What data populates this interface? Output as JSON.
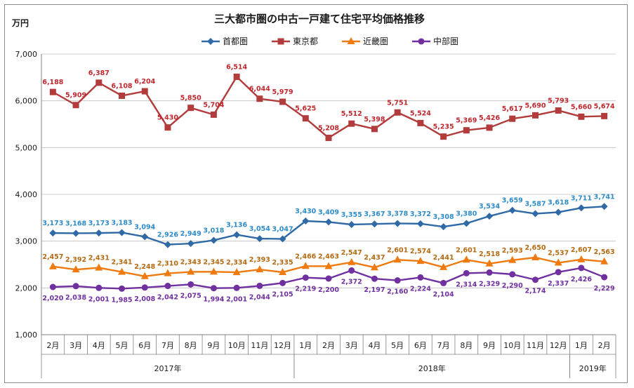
{
  "chart_data": {
    "type": "line",
    "title": "三大都市圏の中古一戸建て住宅平均価格推移",
    "ylabel": "万円",
    "ylim": [
      1000,
      7000
    ],
    "y_ticks": [
      "1,000",
      "2,000",
      "3,000",
      "4,000",
      "5,000",
      "6,000",
      "7,000"
    ],
    "y_tick_values": [
      1000,
      2000,
      3000,
      4000,
      5000,
      6000,
      7000
    ],
    "categories": [
      "2月",
      "3月",
      "4月",
      "5月",
      "6月",
      "7月",
      "8月",
      "9月",
      "10月",
      "11月",
      "12月",
      "1月",
      "2月",
      "3月",
      "4月",
      "5月",
      "6月",
      "7月",
      "8月",
      "9月",
      "10月",
      "11月",
      "12月",
      "1月",
      "2月"
    ],
    "year_groups": [
      {
        "label": "2017年",
        "start": 0,
        "end": 10
      },
      {
        "label": "2018年",
        "start": 11,
        "end": 22
      },
      {
        "label": "2019年",
        "start": 23,
        "end": 24
      }
    ],
    "legend_position": "top-center",
    "series": [
      {
        "name": "首都圏",
        "color": "#2f6aa6",
        "label_color": "#2e8bc9",
        "marker": "diamond",
        "label_pos": "above",
        "values": [
          3173,
          3168,
          3173,
          3183,
          3094,
          2926,
          2949,
          3018,
          3136,
          3054,
          3047,
          3430,
          3409,
          3355,
          3367,
          3378,
          3372,
          3308,
          3380,
          3534,
          3659,
          3587,
          3618,
          3711,
          3741
        ],
        "labels": [
          "3,173",
          "3,168",
          "3,173",
          "3,183",
          "3,094",
          "2,926",
          "2,949",
          "3,018",
          "3,136",
          "3,054",
          "3,047",
          "3,430",
          "3,409",
          "3,355",
          "3,367",
          "3,378",
          "3,372",
          "3,308",
          "3,380",
          "3,534",
          "3,659",
          "3,587",
          "3,618",
          "3,711",
          "3,741"
        ]
      },
      {
        "name": "東京都",
        "color": "#b23b3b",
        "label_color": "#c0272d",
        "marker": "square",
        "label_pos": "above",
        "values": [
          6188,
          5909,
          6387,
          6108,
          6204,
          5430,
          5850,
          5704,
          6514,
          6044,
          5979,
          5625,
          5208,
          5512,
          5398,
          5751,
          5524,
          5235,
          5369,
          5426,
          5617,
          5690,
          5793,
          5660,
          5674
        ],
        "labels": [
          "6,188",
          "5,909",
          "6,387",
          "6,108",
          "6,204",
          "5,430",
          "5,850",
          "5,704",
          "6,514",
          "6,044",
          "5,979",
          "5,625",
          "5,208",
          "5,512",
          "5,398",
          "5,751",
          "5,524",
          "5,235",
          "5,369",
          "5,426",
          "5,617",
          "5,690",
          "5,793",
          "5,660",
          "5,674"
        ]
      },
      {
        "name": "近畿圏",
        "color": "#ee7a10",
        "label_color": "#b36a12",
        "marker": "triangle",
        "label_pos": "above",
        "values": [
          2457,
          2392,
          2431,
          2341,
          2248,
          2310,
          2343,
          2345,
          2334,
          2393,
          2335,
          2466,
          2463,
          2547,
          2437,
          2601,
          2574,
          2441,
          2601,
          2518,
          2593,
          2650,
          2537,
          2607,
          2563
        ],
        "labels": [
          "2,457",
          "2,392",
          "2,431",
          "2,341",
          "2,248",
          "2,310",
          "2,343",
          "2,345",
          "2,334",
          "2,393",
          "2,335",
          "2,466",
          "2,463",
          "2,547",
          "2,437",
          "2,601",
          "2,574",
          "2,441",
          "2,601",
          "2,518",
          "2,593",
          "2,650",
          "2,537",
          "2,607",
          "2,563"
        ]
      },
      {
        "name": "中部圏",
        "color": "#7030a0",
        "label_color": "#7030a0",
        "marker": "circle",
        "label_pos": "below",
        "values": [
          2020,
          2038,
          2001,
          1985,
          2008,
          2042,
          2075,
          1994,
          2001,
          2044,
          2105,
          2219,
          2200,
          2372,
          2197,
          2160,
          2224,
          2104,
          2314,
          2329,
          2290,
          2174,
          2337,
          2426,
          2229
        ],
        "labels": [
          "2,020",
          "2,038",
          "2,001",
          "1,985",
          "2,008",
          "2,042",
          "2,075",
          "1,994",
          "2,001",
          "2,044",
          "2,105",
          "2,219",
          "2,200",
          "2,372",
          "2,197",
          "2,160",
          "2,224",
          "2,104",
          "2,314",
          "2,329",
          "2,290",
          "2,174",
          "2,337",
          "2,426",
          "2,229"
        ]
      }
    ]
  }
}
